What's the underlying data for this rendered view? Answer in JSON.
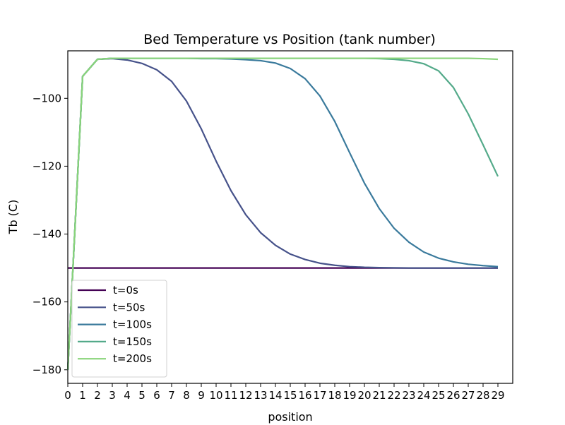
{
  "chart_data": {
    "type": "line",
    "title": "Bed Temperature vs Position (tank number)",
    "xlabel": "position",
    "ylabel": "Tb (C)",
    "xlim": [
      0,
      30
    ],
    "ylim": [
      -184,
      -86
    ],
    "x_ticks": [
      "0",
      "1",
      "2",
      "3",
      "4",
      "5",
      "6",
      "7",
      "8",
      "9",
      "10",
      "11",
      "12",
      "13",
      "14",
      "15",
      "16",
      "17",
      "18",
      "19",
      "20",
      "21",
      "22",
      "23",
      "24",
      "25",
      "26",
      "27",
      "28",
      "29"
    ],
    "y_ticks": [
      -100,
      -120,
      -140,
      -160,
      -180
    ],
    "y_tick_labels": [
      "−100",
      "−120",
      "−140",
      "−160",
      "−180"
    ],
    "grid": false,
    "legend_position": "lower-left",
    "x": [
      0,
      1,
      2,
      3,
      4,
      5,
      6,
      7,
      8,
      9,
      10,
      11,
      12,
      13,
      14,
      15,
      16,
      17,
      18,
      19,
      20,
      21,
      22,
      23,
      24,
      25,
      26,
      27,
      28,
      29
    ],
    "series": [
      {
        "name": "t=0s",
        "color": "#440154",
        "values": [
          -150,
          -150,
          -150,
          -150,
          -150,
          -150,
          -150,
          -150,
          -150,
          -150,
          -150,
          -150,
          -150,
          -150,
          -150,
          -150,
          -150,
          -150,
          -150,
          -150,
          -150,
          -150,
          -150,
          -150,
          -150,
          -150,
          -150,
          -150,
          -150,
          -150
        ]
      },
      {
        "name": "t=50s",
        "color": "#46528a",
        "values": [
          -180,
          -93.5,
          -88.5,
          -88.3,
          -88.7,
          -89.7,
          -91.6,
          -95,
          -100.8,
          -109,
          -118.5,
          -127.2,
          -134.3,
          -139.6,
          -143.3,
          -145.9,
          -147.5,
          -148.6,
          -149.2,
          -149.6,
          -149.8,
          -149.9,
          -149.95,
          -150,
          -150,
          -150,
          -150,
          -150,
          -150,
          -150
        ]
      },
      {
        "name": "t=100s",
        "color": "#3a7a9c",
        "values": [
          -180,
          -93.5,
          -88.5,
          -88.2,
          -88.2,
          -88.2,
          -88.2,
          -88.2,
          -88.2,
          -88.3,
          -88.3,
          -88.4,
          -88.6,
          -88.9,
          -89.6,
          -91.2,
          -94.2,
          -99.3,
          -106.8,
          -116,
          -125,
          -132.5,
          -138.3,
          -142.4,
          -145.3,
          -147.1,
          -148.2,
          -148.9,
          -149.3,
          -149.6
        ]
      },
      {
        "name": "t=150s",
        "color": "#54aa8a",
        "values": [
          -180,
          -93.5,
          -88.5,
          -88.2,
          -88.2,
          -88.2,
          -88.2,
          -88.2,
          -88.2,
          -88.2,
          -88.2,
          -88.2,
          -88.2,
          -88.2,
          -88.2,
          -88.2,
          -88.2,
          -88.2,
          -88.2,
          -88.2,
          -88.2,
          -88.3,
          -88.5,
          -88.9,
          -89.8,
          -91.9,
          -96.8,
          -104.6,
          -113.7,
          -123
        ]
      },
      {
        "name": "t=200s",
        "color": "#89d47a",
        "values": [
          -180,
          -93.5,
          -88.5,
          -88.2,
          -88.2,
          -88.2,
          -88.2,
          -88.2,
          -88.2,
          -88.2,
          -88.2,
          -88.2,
          -88.2,
          -88.2,
          -88.2,
          -88.2,
          -88.2,
          -88.2,
          -88.2,
          -88.2,
          -88.2,
          -88.2,
          -88.2,
          -88.2,
          -88.2,
          -88.2,
          -88.2,
          -88.2,
          -88.3,
          -88.5
        ]
      }
    ]
  }
}
